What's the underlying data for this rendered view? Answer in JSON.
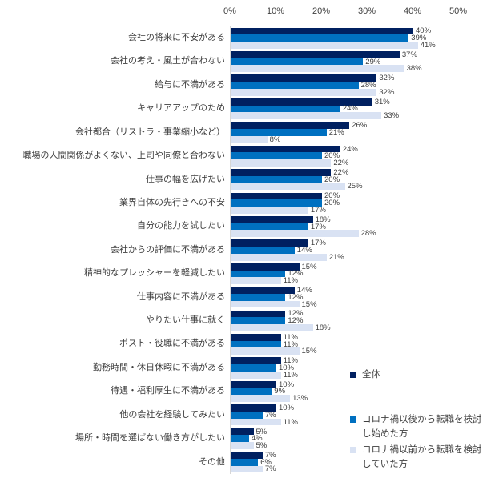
{
  "chart_data": {
    "type": "bar",
    "orientation": "horizontal",
    "title": "",
    "xlabel": "",
    "ylabel": "",
    "xlim": [
      0,
      50
    ],
    "x_ticks": [
      "0%",
      "10%",
      "20%",
      "30%",
      "40%",
      "50%"
    ],
    "grid": false,
    "legend_position": "right-bottom",
    "value_suffix": "%",
    "categories": [
      "会社の将来に不安がある",
      "会社の考え・風土が合わない",
      "給与に不満がある",
      "キャリアアップのため",
      "会社都合（リストラ・事業縮小など）",
      "職場の人間関係がよくない、上司や同僚と合わない",
      "仕事の幅を広げたい",
      "業界自体の先行きへの不安",
      "自分の能力を試したい",
      "会社からの評価に不満がある",
      "精神的なプレッシャーを軽減したい",
      "仕事内容に不満がある",
      "やりたい仕事に就く",
      "ポスト・役職に不満がある",
      "勤務時間・休日休暇に不満がある",
      "待遇・福利厚生に不満がある",
      "他の会社を経験してみたい",
      "場所・時間を選ばない働き方がしたい",
      "その他"
    ],
    "series": [
      {
        "name": "全体",
        "color": "#002060",
        "values": [
          40,
          37,
          32,
          31,
          26,
          24,
          22,
          20,
          18,
          17,
          15,
          14,
          12,
          11,
          11,
          10,
          10,
          5,
          7
        ]
      },
      {
        "name": "コロナ禍以後から転職を検討し始めた方",
        "color": "#0070C0",
        "values": [
          39,
          29,
          28,
          24,
          21,
          20,
          20,
          20,
          17,
          14,
          12,
          12,
          12,
          11,
          10,
          9,
          7,
          4,
          6
        ]
      },
      {
        "name": "コロナ禍以前から転職を検討していた方",
        "color": "#D9E2F3",
        "values": [
          41,
          38,
          32,
          33,
          8,
          22,
          25,
          17,
          28,
          21,
          11,
          15,
          18,
          15,
          11,
          13,
          11,
          5,
          7
        ]
      }
    ],
    "colors": {
      "text": "#404040",
      "axis_line": "#d6d6d6"
    }
  }
}
